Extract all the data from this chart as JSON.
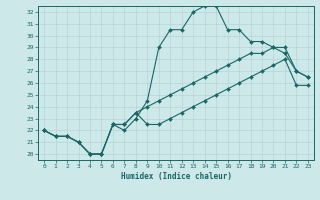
{
  "xlabel": "Humidex (Indice chaleur)",
  "bg_color": "#cce8e8",
  "grid_color": "#b0d0d0",
  "line_color": "#1a6666",
  "xlim": [
    -0.5,
    23.5
  ],
  "ylim": [
    19.5,
    32.5
  ],
  "xticks": [
    0,
    1,
    2,
    3,
    4,
    5,
    6,
    7,
    8,
    9,
    10,
    11,
    12,
    13,
    14,
    15,
    16,
    17,
    18,
    19,
    20,
    21,
    22,
    23
  ],
  "yticks": [
    20,
    21,
    22,
    23,
    24,
    25,
    26,
    27,
    28,
    29,
    30,
    31,
    32
  ],
  "line1_x": [
    0,
    1,
    2,
    3,
    4,
    5,
    6,
    7,
    8,
    9,
    10,
    11,
    12,
    13,
    14,
    15,
    16,
    17,
    18,
    19,
    20,
    21,
    22,
    23
  ],
  "line1_y": [
    22,
    21.5,
    21.5,
    21,
    20,
    20,
    22.5,
    22,
    23,
    24.5,
    29,
    30.5,
    30.5,
    32,
    32.5,
    32.5,
    30.5,
    30.5,
    29.5,
    29.5,
    29,
    28.5,
    27,
    26.5
  ],
  "line2_x": [
    0,
    1,
    2,
    3,
    4,
    5,
    6,
    7,
    8,
    9,
    10,
    11,
    12,
    13,
    14,
    15,
    16,
    17,
    18,
    19,
    20,
    21,
    22,
    23
  ],
  "line2_y": [
    22,
    21.5,
    21.5,
    21,
    20,
    20,
    22.5,
    22.5,
    23.5,
    24,
    24.5,
    25,
    25.5,
    26,
    26.5,
    27,
    27.5,
    28,
    28.5,
    28.5,
    29,
    29,
    27,
    26.5
  ],
  "line3_x": [
    0,
    1,
    2,
    3,
    4,
    5,
    6,
    7,
    8,
    9,
    10,
    11,
    12,
    13,
    14,
    15,
    16,
    17,
    18,
    19,
    20,
    21,
    22,
    23
  ],
  "line3_y": [
    22,
    21.5,
    21.5,
    21,
    20,
    20,
    22.5,
    22.5,
    23.5,
    22.5,
    22.5,
    23,
    23.5,
    24,
    24.5,
    25,
    25.5,
    26,
    26.5,
    27,
    27.5,
    28,
    25.8,
    25.8
  ]
}
